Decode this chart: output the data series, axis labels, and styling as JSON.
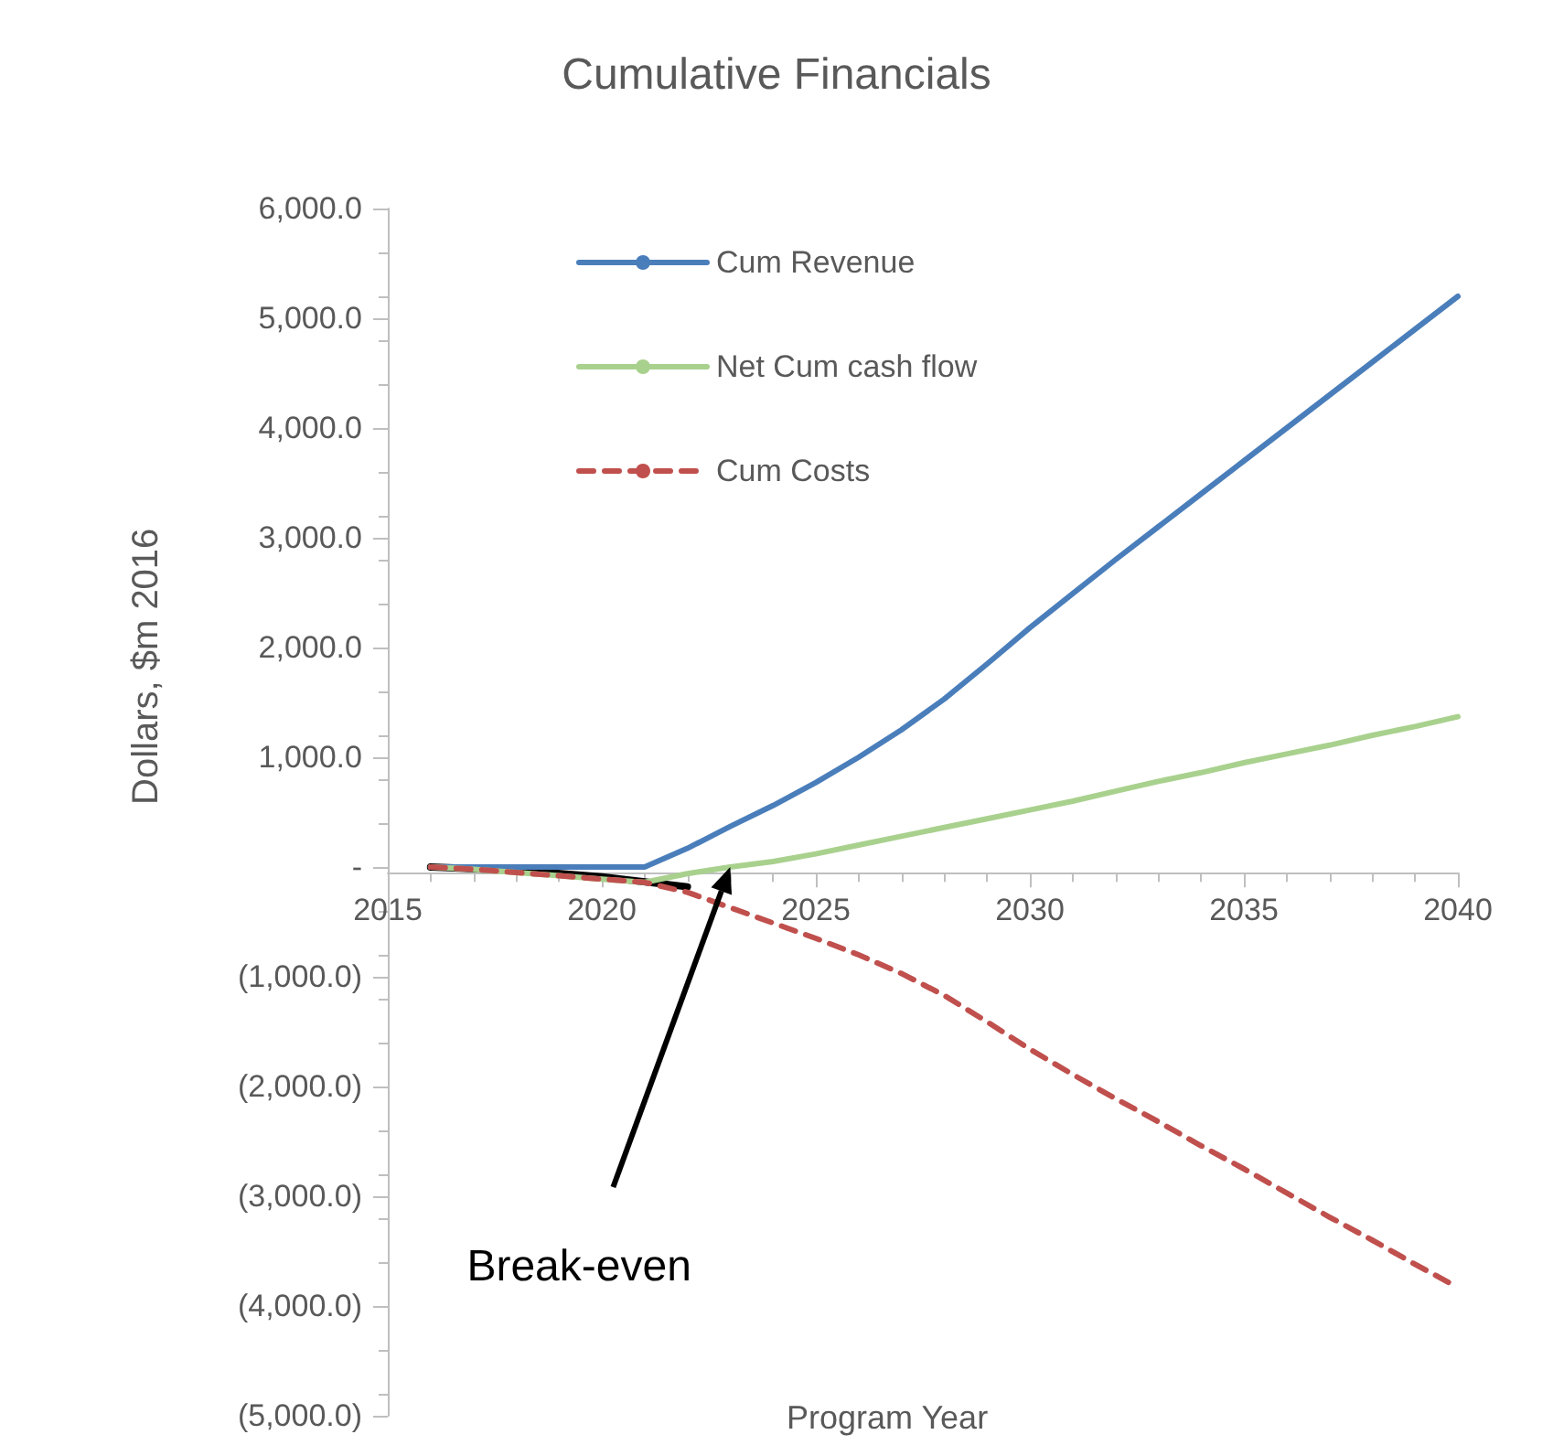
{
  "chart_data": {
    "type": "line",
    "title": "Cumulative Financials",
    "xlabel": "Program Year",
    "ylabel": "Dollars, $m 2016",
    "x": [
      2016,
      2017,
      2018,
      2019,
      2020,
      2021,
      2022,
      2023,
      2024,
      2025,
      2026,
      2027,
      2028,
      2029,
      2030,
      2031,
      2032,
      2033,
      2034,
      2035,
      2036,
      2037,
      2038,
      2039,
      2040
    ],
    "series": [
      {
        "name": "Cum Revenue",
        "color": "#4a7ebb",
        "values": [
          0,
          0,
          0,
          0,
          0,
          0,
          170,
          370,
          560,
          770,
          1000,
          1250,
          1530,
          1850,
          2180,
          2490,
          2800,
          3100,
          3400,
          3700,
          4000,
          4300,
          4600,
          4900,
          5200
        ]
      },
      {
        "name": "Net Cum cash flow",
        "color": "#a9d18e",
        "values": [
          0,
          -20,
          -50,
          -80,
          -110,
          -140,
          -60,
          0,
          50,
          120,
          200,
          280,
          360,
          440,
          520,
          600,
          690,
          780,
          860,
          950,
          1030,
          1110,
          1200,
          1280,
          1370
        ]
      },
      {
        "name": "Cum Costs",
        "color": "#c0504d",
        "line_style": "dashed",
        "values": [
          0,
          -20,
          -50,
          -80,
          -110,
          -140,
          -230,
          -370,
          -510,
          -650,
          -800,
          -970,
          -1170,
          -1410,
          -1660,
          -1890,
          -2110,
          -2320,
          -2540,
          -2750,
          -2970,
          -3190,
          -3400,
          -3620,
          -3830
        ]
      },
      {
        "color": "#000000",
        "x": [
          2016,
          2018,
          2020,
          2022
        ],
        "values": [
          0,
          -30,
          -90,
          -180
        ]
      }
    ],
    "annotations": [
      "Break-even"
    ],
    "xlim": [
      2015,
      2040
    ],
    "xticks": [
      2015,
      2020,
      2025,
      2030,
      2035,
      2040
    ],
    "ylim": [
      -5000,
      6000
    ],
    "yticks": [
      {
        "value": -5000,
        "label": "(5,000.0)"
      },
      {
        "value": -4000,
        "label": "(4,000.0)"
      },
      {
        "value": -3000,
        "label": "(3,000.0)"
      },
      {
        "value": -2000,
        "label": "(2,000.0)"
      },
      {
        "value": -1000,
        "label": "(1,000.0)"
      },
      {
        "value": 0,
        "label": "-"
      },
      {
        "value": 1000,
        "label": "1,000.0"
      },
      {
        "value": 2000,
        "label": "2,000.0"
      },
      {
        "value": 3000,
        "label": "3,000.0"
      },
      {
        "value": 4000,
        "label": "4,000.0"
      },
      {
        "value": 5000,
        "label": "5,000.0"
      },
      {
        "value": 6000,
        "label": "6,000.0"
      }
    ],
    "grid": false,
    "legend": "top left",
    "marker": "none"
  }
}
